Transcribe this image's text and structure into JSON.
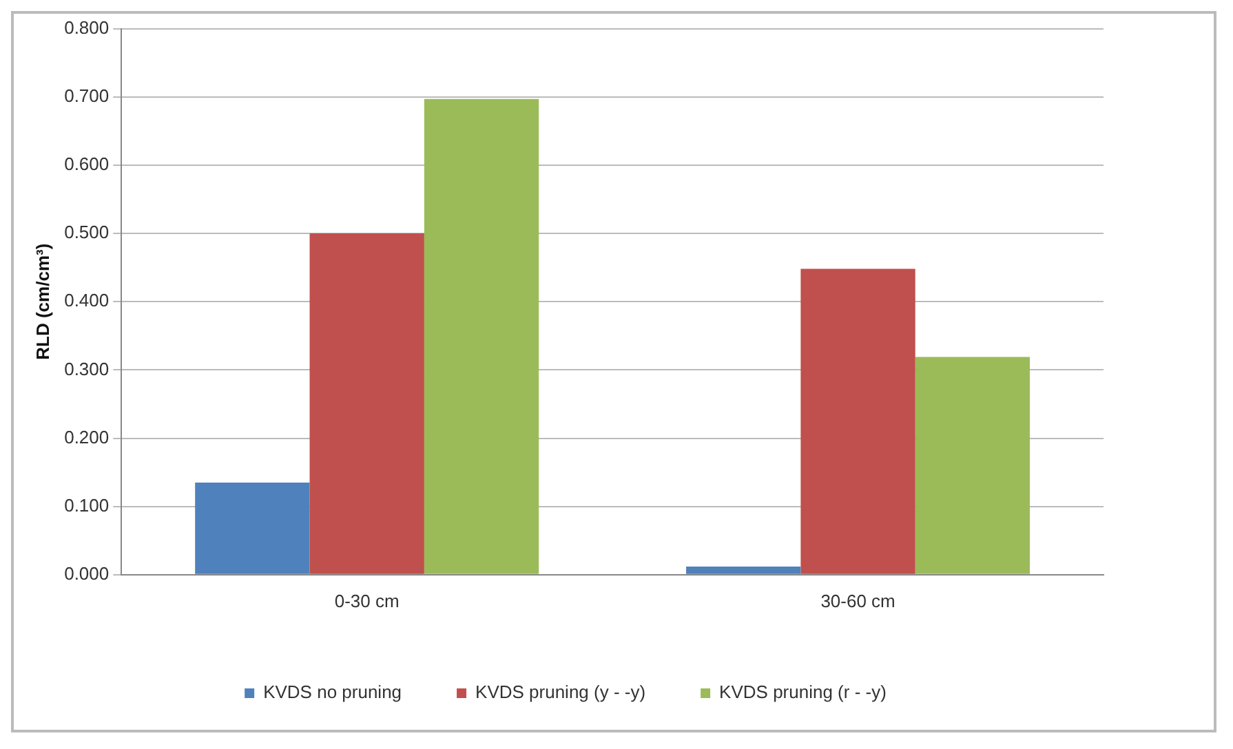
{
  "chart_data": {
    "type": "bar",
    "ylabel": "RLD (cm/cm³)",
    "categories": [
      "0-30 cm",
      "30-60 cm"
    ],
    "series": [
      {
        "name": "KVDS no pruning",
        "color": "#4f81bd",
        "values": [
          0.135,
          0.012
        ]
      },
      {
        "name": "KVDS pruning (y - -y)",
        "color": "#c0504d",
        "values": [
          0.5,
          0.448
        ]
      },
      {
        "name": "KVDS pruning (r - -y)",
        "color": "#9bbb59",
        "values": [
          0.697,
          0.319
        ]
      }
    ],
    "ylim": [
      0,
      0.8
    ],
    "yticks": [
      {
        "value": 0,
        "label": "0.000"
      },
      {
        "value": 0.1,
        "label": "0.100"
      },
      {
        "value": 0.2,
        "label": "0.200"
      },
      {
        "value": 0.3,
        "label": "0.300"
      },
      {
        "value": 0.4,
        "label": "0.400"
      },
      {
        "value": 0.5,
        "label": "0.500"
      },
      {
        "value": 0.6,
        "label": "0.600"
      },
      {
        "value": 0.7,
        "label": "0.700"
      },
      {
        "value": 0.8,
        "label": "0.800"
      }
    ],
    "grid": "y",
    "legend": "bottom"
  }
}
